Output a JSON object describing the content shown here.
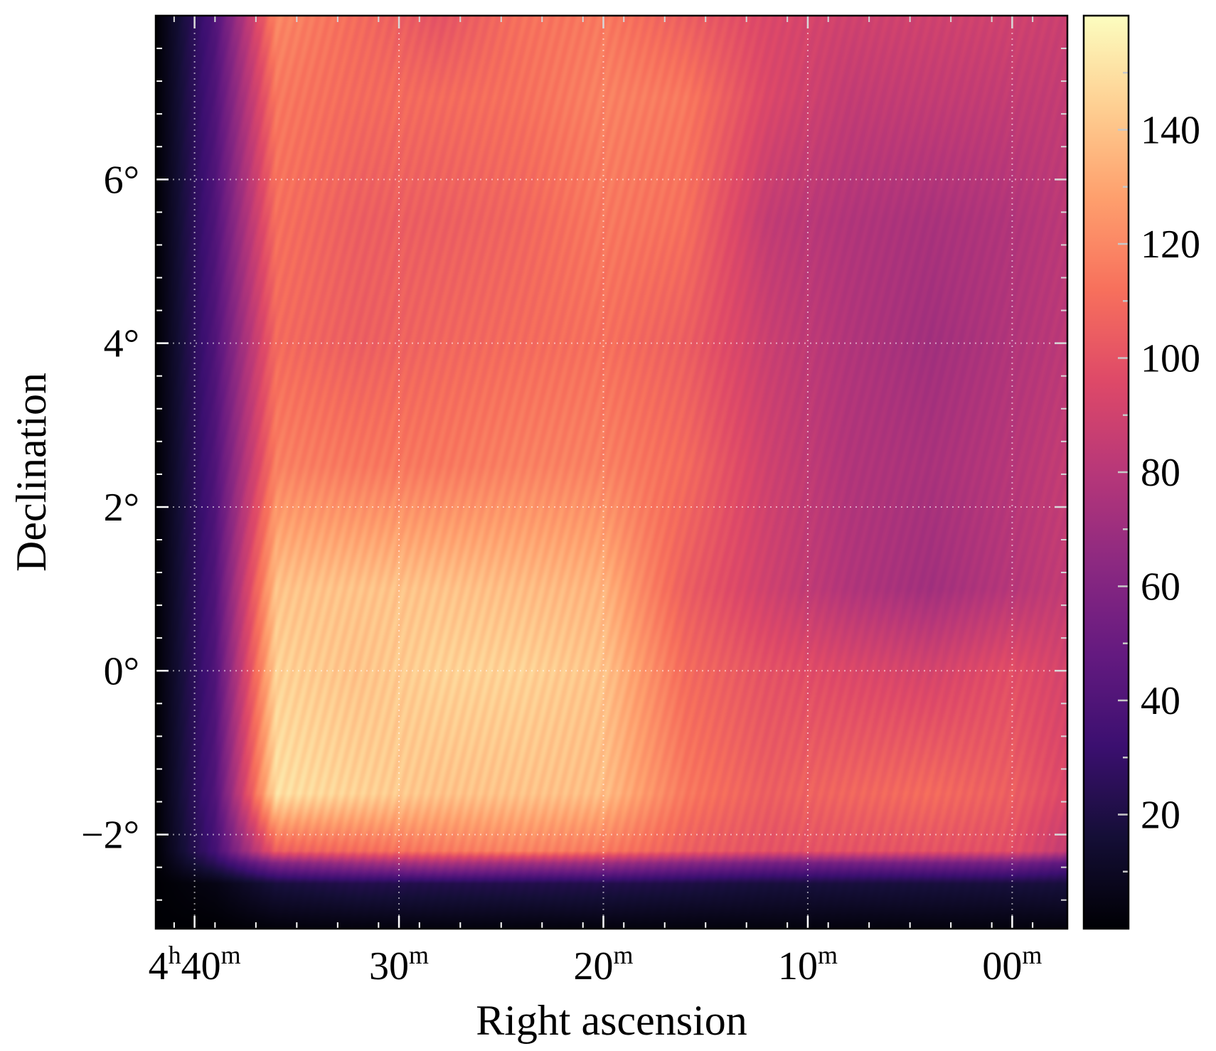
{
  "chart_data": {
    "type": "heatmap",
    "title": "",
    "xlabel": "Right ascension",
    "ylabel": "Declination",
    "colormap": "magma",
    "grid": true,
    "grid_style": "dotted",
    "colorbar_position": "right",
    "x_ticks": [
      {
        "value_min": 280,
        "base": "4",
        "base_unit": "h",
        "main": "40",
        "unit": "m"
      },
      {
        "value_min": 270,
        "base": "",
        "base_unit": "",
        "main": "30",
        "unit": "m"
      },
      {
        "value_min": 260,
        "base": "",
        "base_unit": "",
        "main": "20",
        "unit": "m"
      },
      {
        "value_min": 250,
        "base": "",
        "base_unit": "",
        "main": "10",
        "unit": "m"
      },
      {
        "value_min": 240,
        "base": "",
        "base_unit": "",
        "main": "00",
        "unit": "m"
      }
    ],
    "xlim_min": [
      281.9,
      237.3
    ],
    "y_ticks": [
      {
        "value": 6,
        "label": "6°"
      },
      {
        "value": 4,
        "label": "4°"
      },
      {
        "value": 2,
        "label": "2°"
      },
      {
        "value": 0,
        "label": "0°"
      },
      {
        "value": -2,
        "label": "−2°"
      }
    ],
    "ylim_deg": [
      -3.15,
      8.0
    ],
    "colorbar": {
      "range": [
        0,
        160
      ],
      "ticks": [
        20,
        40,
        60,
        80,
        100,
        120,
        140
      ],
      "labels": [
        "20",
        "40",
        "60",
        "80",
        "100",
        "120",
        "140"
      ]
    },
    "value_grid": {
      "ra_min": [
        281.9,
        279,
        276,
        272,
        268,
        264,
        260,
        256,
        252,
        248,
        244,
        240,
        237.3
      ],
      "dec_deg": [
        -3.15,
        -2.6,
        -2.35,
        -2.2,
        -1.5,
        0,
        1.0,
        2.5,
        4.0,
        5.5,
        7.0,
        8.0
      ],
      "values": [
        [
          0,
          0,
          2,
          3,
          3,
          3,
          3,
          3,
          3,
          3,
          3,
          3,
          3
        ],
        [
          0,
          5,
          18,
          22,
          22,
          22,
          22,
          20,
          18,
          18,
          18,
          18,
          18
        ],
        [
          0,
          25,
          60,
          70,
          75,
          72,
          70,
          62,
          55,
          55,
          55,
          55,
          45
        ],
        [
          0,
          35,
          105,
          110,
          115,
          118,
          115,
          105,
          100,
          100,
          100,
          98,
          85
        ],
        [
          0,
          40,
          150,
          145,
          140,
          140,
          138,
          115,
          105,
          108,
          110,
          105,
          95
        ],
        [
          0,
          40,
          145,
          140,
          145,
          145,
          140,
          110,
          100,
          95,
          92,
          98,
          92
        ],
        [
          0,
          40,
          140,
          140,
          140,
          138,
          135,
          105,
          90,
          78,
          72,
          80,
          85
        ],
        [
          0,
          40,
          118,
          115,
          115,
          118,
          118,
          110,
          90,
          78,
          75,
          80,
          85
        ],
        [
          0,
          40,
          110,
          105,
          108,
          110,
          112,
          105,
          88,
          78,
          72,
          78,
          82
        ],
        [
          0,
          40,
          112,
          105,
          105,
          108,
          115,
          112,
          85,
          78,
          75,
          78,
          82
        ],
        [
          0,
          40,
          115,
          110,
          110,
          112,
          118,
          115,
          95,
          85,
          85,
          85,
          85
        ],
        [
          0,
          40,
          120,
          110,
          100,
          112,
          115,
          105,
          95,
          90,
          90,
          90,
          88
        ]
      ]
    }
  }
}
